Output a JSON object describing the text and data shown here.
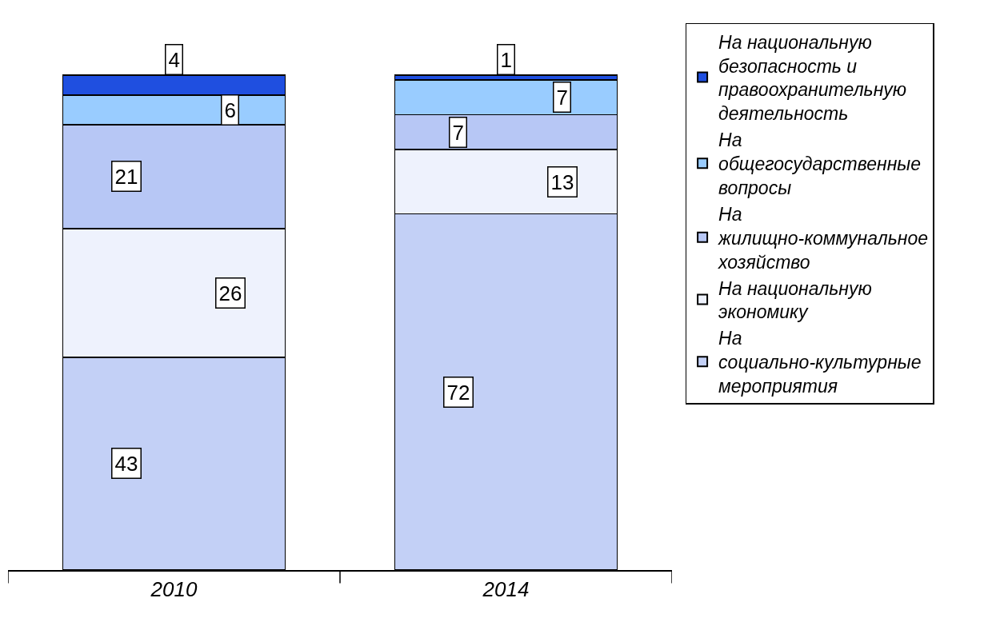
{
  "chart_data": {
    "type": "bar",
    "stacked": true,
    "data_labels": true,
    "legend": "right",
    "categories": [
      "2010",
      "2014"
    ],
    "series": [
      {
        "name": "На социально-культурные мероприятия",
        "color": "#c3d0f6",
        "values": [
          43,
          72
        ]
      },
      {
        "name": "На национальную экономику",
        "color": "#eef2fd",
        "values": [
          26,
          13
        ]
      },
      {
        "name": "На жилищно-коммунальное хозяйство",
        "color": "#b7c7f5",
        "values": [
          21,
          7
        ]
      },
      {
        "name": "На общегосударственные вопросы",
        "color": "#99ccff",
        "values": [
          6,
          7
        ]
      },
      {
        "name": "На национальную безопасность и правоохранительную деятельность",
        "color": "#1f4fe0",
        "values": [
          4,
          1
        ]
      }
    ]
  }
}
